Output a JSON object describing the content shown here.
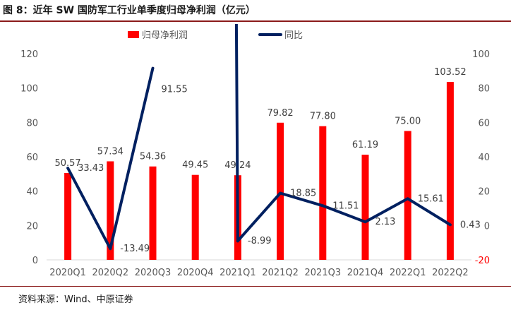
{
  "title": "图 8：近年 SW 国防军工行业单季度归母净利润（亿元）",
  "source": "资料来源：Wind、中原证券",
  "chart_data": {
    "type": "bar+line",
    "categories": [
      "2020Q1",
      "2020Q2",
      "2020Q3",
      "2020Q4",
      "2021Q1",
      "2021Q2",
      "2021Q3",
      "2021Q4",
      "2022Q1",
      "2022Q2"
    ],
    "series": [
      {
        "name": "归母净利润",
        "type": "bar",
        "axis": "left",
        "color": "#ff0000",
        "values": [
          50.57,
          57.34,
          54.36,
          49.45,
          49.24,
          79.82,
          77.8,
          61.19,
          75.0,
          103.52
        ],
        "labels": [
          "50.57",
          "57.34",
          "54.36",
          "49.45",
          "49.24",
          "79.82",
          "77.80",
          "61.19",
          "75.00",
          "103.52"
        ]
      },
      {
        "name": "同比",
        "type": "line",
        "axis": "right",
        "color": "#002060",
        "values": [
          33.43,
          -13.49,
          91.55,
          null,
          -8.99,
          18.85,
          11.51,
          2.13,
          15.61,
          0.43
        ],
        "labels": [
          "33.43",
          "-13.49",
          "91.55",
          "",
          "-8.99",
          "18.85",
          "11.51",
          "2.13",
          "15.61",
          "0.43"
        ]
      }
    ],
    "y_left": {
      "min": 0,
      "max": 120,
      "ticks": [
        "0",
        "20",
        "40",
        "60",
        "80",
        "100",
        "120"
      ]
    },
    "y_right": {
      "min": -20,
      "max": 100,
      "ticks": [
        "-20",
        "0",
        "20",
        "40",
        "60",
        "80",
        "100"
      ],
      "lowest_tick_color": "#ff0000"
    },
    "legend_position": "top",
    "grid": false
  }
}
